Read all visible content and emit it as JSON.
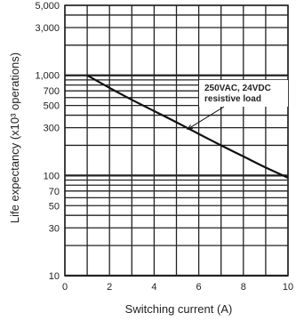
{
  "chart_data": {
    "type": "line",
    "title": "",
    "xlabel": "Switching current (A)",
    "ylabel": "Life expectancy (x10³ operations)",
    "xlim": [
      0,
      10
    ],
    "ylim": [
      10,
      5000
    ],
    "yscale": "log",
    "grid": true,
    "x_ticks": [
      0,
      2,
      4,
      6,
      8,
      10
    ],
    "x_tick_labels": [
      "0",
      "2",
      "4",
      "6",
      "8",
      "10"
    ],
    "y_ticks": [
      10,
      30,
      50,
      70,
      100,
      300,
      500,
      700,
      1000,
      3000,
      5000
    ],
    "y_tick_labels": [
      "10",
      "30",
      "50",
      "70",
      "100",
      "300",
      "500",
      "700",
      "1,000",
      "3,000",
      "5,000"
    ],
    "series": [
      {
        "x": [
          1,
          2,
          3,
          4,
          5,
          6,
          7,
          8,
          9,
          10
        ],
        "y": [
          1000,
          750,
          570,
          440,
          340,
          260,
          200,
          155,
          120,
          95
        ]
      }
    ],
    "annotations": [
      {
        "text_lines": [
          "250VAC, 24VDC",
          "resistive load"
        ],
        "points_to": {
          "x": 5.5,
          "y": 290
        }
      }
    ],
    "colors": {
      "line": "#111111",
      "grid": "#222222",
      "box_fill": "#ffffff"
    }
  }
}
